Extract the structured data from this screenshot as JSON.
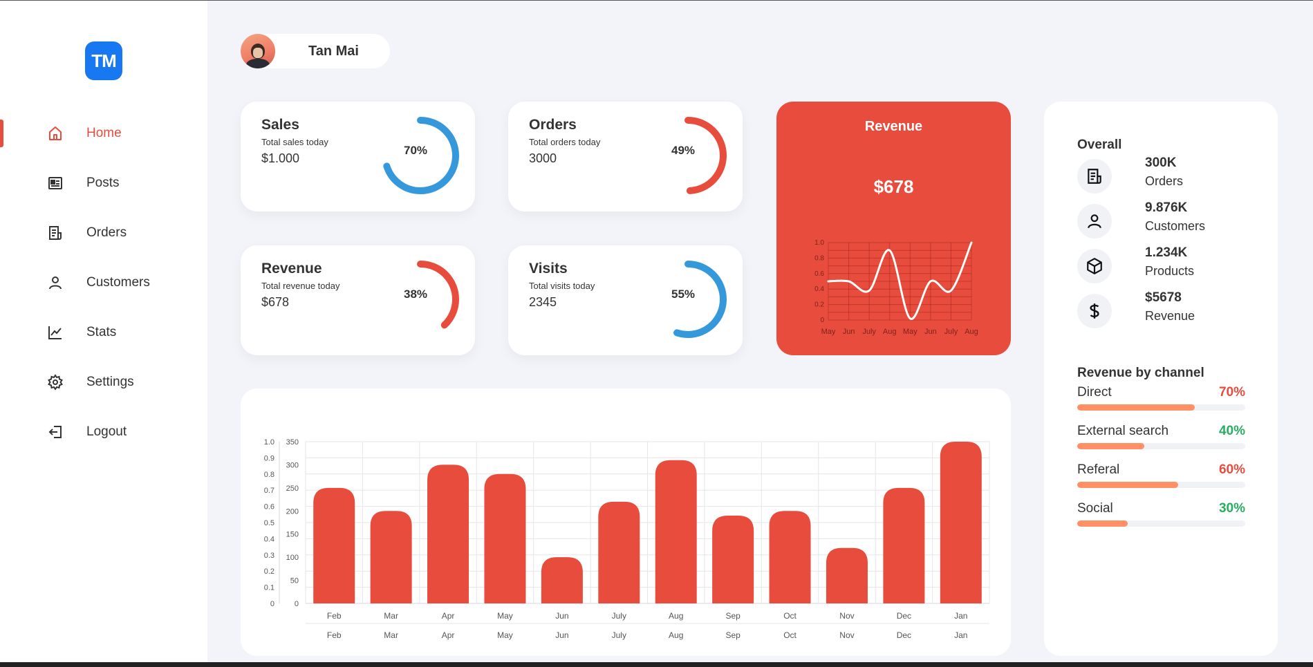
{
  "colors": {
    "accent": "#e84c3d",
    "blue": "#3498db",
    "orange_bar": "#ff9066",
    "green": "#27ae60",
    "logo_blue": "#1778f2"
  },
  "brand": {
    "logo_text": "TM"
  },
  "sidebar": {
    "items": [
      {
        "label": "Home",
        "icon": "home-icon",
        "active": true
      },
      {
        "label": "Posts",
        "icon": "newspaper-icon",
        "active": false
      },
      {
        "label": "Orders",
        "icon": "receipt-icon",
        "active": false
      },
      {
        "label": "Customers",
        "icon": "user-icon",
        "active": false
      },
      {
        "label": "Stats",
        "icon": "line-chart-icon",
        "active": false
      },
      {
        "label": "Settings",
        "icon": "gear-icon",
        "active": false
      },
      {
        "label": "Logout",
        "icon": "logout-icon",
        "active": false
      }
    ]
  },
  "user": {
    "name": "Tan Mai"
  },
  "summary_cards": [
    {
      "title": "Sales",
      "subtitle": "Total sales today",
      "value": "$1.000",
      "percent_label": "70%",
      "percent": 70,
      "color": "#3498db"
    },
    {
      "title": "Orders",
      "subtitle": "Total orders today",
      "value": "3000",
      "percent_label": "49%",
      "percent": 49,
      "color": "#e84c3d"
    },
    {
      "title": "Revenue",
      "subtitle": "Total revenue today",
      "value": "$678",
      "percent_label": "38%",
      "percent": 38,
      "color": "#e84c3d"
    },
    {
      "title": "Visits",
      "subtitle": "Total visits today",
      "value": "2345",
      "percent_label": "55%",
      "percent": 55,
      "color": "#3498db"
    }
  ],
  "revenue_card": {
    "title": "Revenue",
    "value": "$678"
  },
  "overall": {
    "title": "Overall",
    "items": [
      {
        "value": "300K",
        "label": "Orders",
        "icon": "receipt-icon"
      },
      {
        "value": "9.876K",
        "label": "Customers",
        "icon": "user-icon"
      },
      {
        "value": "1.234K",
        "label": "Products",
        "icon": "box-icon"
      },
      {
        "value": "$5678",
        "label": "Revenue",
        "icon": "dollar-icon"
      }
    ]
  },
  "channels": {
    "title": "Revenue by channel",
    "items": [
      {
        "name": "Direct",
        "percent_label": "70%",
        "percent": 70,
        "color": "#e84c3d"
      },
      {
        "name": "External search",
        "percent_label": "40%",
        "percent": 40,
        "color": "#27ae60"
      },
      {
        "name": "Referal",
        "percent_label": "60%",
        "percent": 60,
        "color": "#e84c3d"
      },
      {
        "name": "Social",
        "percent_label": "30%",
        "percent": 30,
        "color": "#27ae60"
      }
    ]
  },
  "chart_data": [
    {
      "type": "line",
      "x": [
        "May",
        "Jun",
        "July",
        "Aug",
        "May",
        "Jun",
        "July",
        "Aug"
      ],
      "series": [
        {
          "values": [
            0.5,
            0.5,
            0.38,
            0.9,
            0.02,
            0.5,
            0.38,
            1.0
          ]
        }
      ],
      "y_ticks": [
        "0",
        "0.2",
        "0.4",
        "0.6",
        "0.8",
        "1.0"
      ],
      "ylim": [
        0,
        1
      ],
      "grid": true
    },
    {
      "type": "bar",
      "categories": [
        "Feb",
        "Mar",
        "Apr",
        "May",
        "Jun",
        "July",
        "Aug",
        "Sep",
        "Oct",
        "Nov",
        "Dec",
        "Jan"
      ],
      "values": [
        250,
        200,
        300,
        280,
        100,
        220,
        310,
        190,
        200,
        120,
        250,
        350
      ],
      "y_ticks_left": [
        "0",
        "0.1",
        "0.2",
        "0.3",
        "0.4",
        "0.5",
        "0.6",
        "0.7",
        "0.8",
        "0.9",
        "1.0"
      ],
      "y_ticks_right": [
        "0",
        "50",
        "100",
        "150",
        "200",
        "250",
        "300",
        "350"
      ],
      "ylim": [
        0,
        350
      ],
      "grid": true
    }
  ]
}
